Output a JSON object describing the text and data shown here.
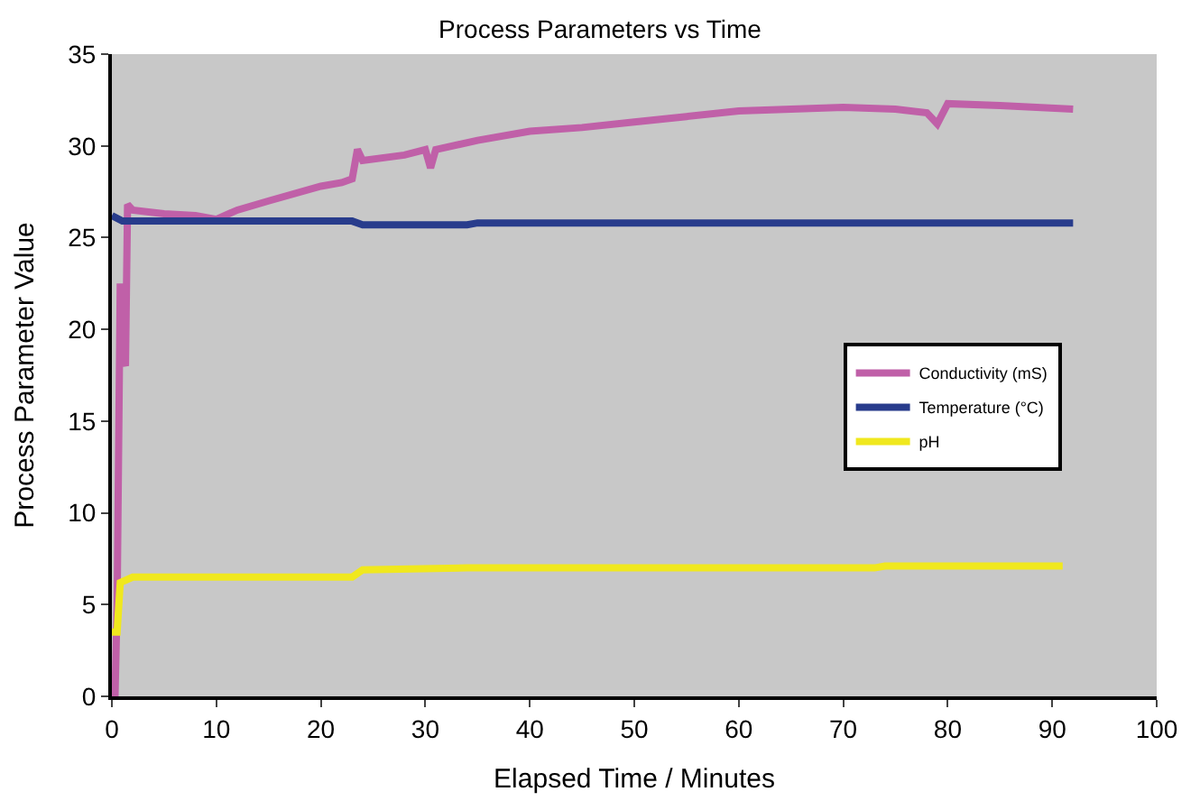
{
  "chart_data": {
    "type": "line",
    "title": "Process Parameters vs Time",
    "xlabel": "Elapsed Time / Minutes",
    "ylabel": "Process Parameter Value",
    "xlim": [
      0,
      100
    ],
    "xticks": [
      0,
      10,
      20,
      30,
      40,
      50,
      60,
      70,
      80,
      90,
      100
    ],
    "ylim": [
      0,
      35
    ],
    "yticks": [
      0,
      5,
      10,
      15,
      20,
      25,
      30,
      35
    ],
    "grid": false,
    "legend": "right",
    "marker": "none",
    "line_style": "solid",
    "series": [
      {
        "name": "Conductivity (mS)",
        "color": "#c060a8",
        "x": [
          0.3,
          0.5,
          0.8,
          1.0,
          1.3,
          1.5,
          2,
          5,
          8,
          10,
          12,
          15,
          20,
          22,
          23,
          23.5,
          24,
          28,
          30,
          30.5,
          31,
          35,
          40,
          45,
          50,
          55,
          60,
          65,
          70,
          75,
          78,
          79,
          80,
          85,
          92
        ],
        "values": [
          0,
          5,
          22.5,
          18.5,
          18,
          26.8,
          26.5,
          26.3,
          26.2,
          26,
          26.5,
          27,
          27.8,
          28,
          28.2,
          29.8,
          29.2,
          29.5,
          29.8,
          28.8,
          29.8,
          30.3,
          30.8,
          31,
          31.3,
          31.6,
          31.9,
          32,
          32.1,
          32,
          31.8,
          31.2,
          32.3,
          32.2,
          32
        ]
      },
      {
        "name": "Temperature (°C)",
        "color": "#283c8c",
        "x": [
          0,
          1,
          23,
          24,
          34,
          35,
          92
        ],
        "values": [
          26.2,
          25.9,
          25.9,
          25.7,
          25.7,
          25.8,
          25.8
        ]
      },
      {
        "name": "pH",
        "color": "#f0e81e",
        "x": [
          0,
          0.5,
          0.8,
          2,
          23,
          24,
          34,
          73,
          74,
          91
        ],
        "values": [
          3.5,
          3.5,
          6.2,
          6.5,
          6.5,
          6.9,
          7.0,
          7.0,
          7.1,
          7.1
        ]
      }
    ]
  }
}
